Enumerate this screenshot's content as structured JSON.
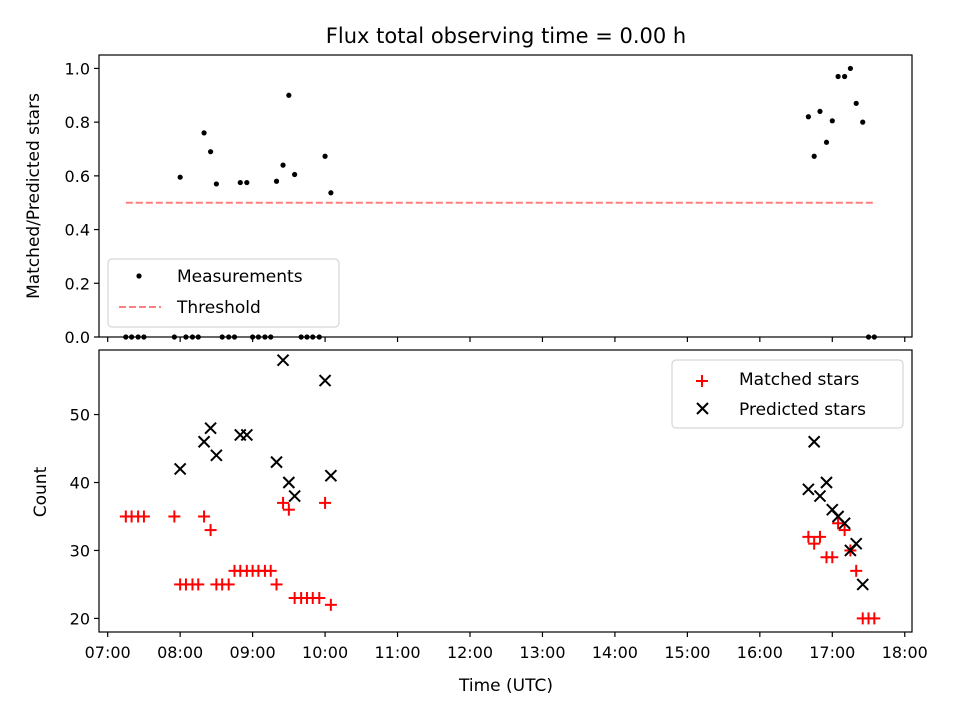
{
  "chart_data": [
    {
      "type": "scatter",
      "title": "Flux total observing time = 0.00 h",
      "ylabel": "Matched/Predicted stars",
      "xlim": [
        6.88,
        18.1
      ],
      "ylim": [
        0,
        1.05
      ],
      "yticks": [
        "0.0",
        "0.2",
        "0.4",
        "0.6",
        "0.8",
        "1.0"
      ],
      "legend_placement": "lower-left",
      "series": [
        {
          "name": "Measurements",
          "color": "#000000",
          "marker": "dot",
          "x": [
            7.25,
            7.33,
            7.42,
            7.5,
            7.92,
            8.0,
            8.08,
            8.17,
            8.25,
            8.33,
            8.42,
            8.5,
            8.58,
            8.67,
            8.75,
            8.83,
            8.92,
            9.0,
            9.08,
            9.17,
            9.25,
            9.33,
            9.42,
            9.5,
            9.58,
            9.67,
            9.75,
            9.83,
            9.92,
            10.0,
            10.08,
            16.67,
            16.75,
            16.83,
            16.92,
            17.0,
            17.08,
            17.17,
            17.25,
            17.33,
            17.42,
            17.5,
            17.58
          ],
          "y": [
            0,
            0,
            0,
            0,
            0,
            0.595,
            0,
            0,
            0,
            0.76,
            0.69,
            0.57,
            0,
            0,
            0,
            0.575,
            0.575,
            0,
            0,
            0,
            0,
            0.58,
            0.64,
            0.9,
            0.605,
            0,
            0,
            0,
            0,
            0.673,
            0.537,
            0.82,
            0.673,
            0.84,
            0.725,
            0.805,
            0.97,
            0.97,
            1.0,
            0.87,
            0.8,
            0,
            0
          ]
        },
        {
          "name": "Threshold",
          "color": "#ff7f7f",
          "style": "dashed",
          "x": [
            7.25,
            17.58
          ],
          "y": [
            0.5,
            0.5
          ]
        }
      ]
    },
    {
      "type": "scatter",
      "xlabel": "Time (UTC)",
      "ylabel": "Count",
      "xlim": [
        6.88,
        18.1
      ],
      "ylim": [
        18,
        59.5
      ],
      "xtick_values": [
        7,
        8,
        9,
        10,
        11,
        12,
        13,
        14,
        15,
        16,
        17,
        18
      ],
      "xticks": [
        "07:00",
        "08:00",
        "09:00",
        "10:00",
        "11:00",
        "12:00",
        "13:00",
        "14:00",
        "15:00",
        "16:00",
        "17:00",
        "18:00"
      ],
      "ytick_values": [
        20,
        30,
        40,
        50
      ],
      "yticks": [
        "20",
        "30",
        "40",
        "50"
      ],
      "legend_placement": "upper-right",
      "series": [
        {
          "name": "Matched stars",
          "color": "#ff0000",
          "marker": "plus",
          "x": [
            7.25,
            7.33,
            7.42,
            7.5,
            7.92,
            8.0,
            8.08,
            8.17,
            8.25,
            8.33,
            8.42,
            8.5,
            8.58,
            8.67,
            8.75,
            8.83,
            8.92,
            9.0,
            9.08,
            9.17,
            9.25,
            9.33,
            9.42,
            9.5,
            9.58,
            9.67,
            9.75,
            9.83,
            9.92,
            10.0,
            10.08,
            16.67,
            16.75,
            16.83,
            16.92,
            17.0,
            17.08,
            17.17,
            17.25,
            17.33,
            17.42,
            17.5,
            17.58
          ],
          "y": [
            35,
            35,
            35,
            35,
            35,
            25,
            25,
            25,
            25,
            35,
            33,
            25,
            25,
            25,
            27,
            27,
            27,
            27,
            27,
            27,
            27,
            25,
            37,
            36,
            23,
            23,
            23,
            23,
            23,
            37,
            22,
            32,
            31,
            32,
            29,
            29,
            34,
            33,
            30,
            27,
            20,
            20,
            20
          ]
        },
        {
          "name": "Predicted stars",
          "color": "#000000",
          "marker": "x",
          "x": [
            8.0,
            8.33,
            8.42,
            8.5,
            8.83,
            8.92,
            9.33,
            9.42,
            9.5,
            9.58,
            10.0,
            10.08,
            16.67,
            16.75,
            16.83,
            16.92,
            17.0,
            17.08,
            17.17,
            17.25,
            17.33,
            17.42
          ],
          "y": [
            42,
            46,
            48,
            44,
            47,
            47,
            43,
            58,
            40,
            38,
            55,
            41,
            39,
            46,
            38,
            40,
            36,
            35,
            34,
            30,
            31,
            25
          ]
        }
      ]
    }
  ]
}
